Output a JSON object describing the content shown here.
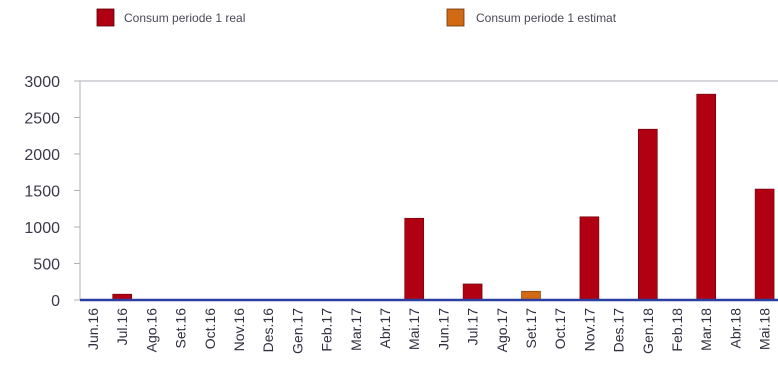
{
  "chart_data": {
    "type": "bar",
    "categories": [
      "Jun.16",
      "Jul.16",
      "Ago.16",
      "Set.16",
      "Oct.16",
      "Nov.16",
      "Des.16",
      "Gen.17",
      "Feb.17",
      "Mar.17",
      "Abr.17",
      "Mai.17",
      "Jun.17",
      "Jul.17",
      "Ago.17",
      "Set.17",
      "Oct.17",
      "Nov.17",
      "Des.17",
      "Gen.18",
      "Feb.18",
      "Mar.18",
      "Abr.18",
      "Mai.18"
    ],
    "series": [
      {
        "name": "Consum periode 1 real",
        "color": "#b00012",
        "values": [
          0,
          80,
          0,
          0,
          0,
          0,
          0,
          0,
          0,
          0,
          0,
          1120,
          0,
          220,
          0,
          0,
          0,
          1140,
          0,
          2340,
          0,
          2820,
          0,
          1520
        ]
      },
      {
        "name": "Consum periode 1 estimat",
        "color": "#d06a14",
        "values": [
          0,
          0,
          0,
          0,
          0,
          0,
          0,
          0,
          0,
          0,
          0,
          0,
          0,
          0,
          0,
          120,
          0,
          0,
          0,
          0,
          0,
          0,
          0,
          0
        ]
      }
    ],
    "yticks": [
      0,
      500,
      1000,
      1500,
      2000,
      2500,
      3000
    ],
    "ylim": [
      0,
      3000
    ],
    "grid": false,
    "legend_position": "top",
    "axis_color": "#b0b0b8",
    "baseline_color": "#2b3fa0"
  }
}
